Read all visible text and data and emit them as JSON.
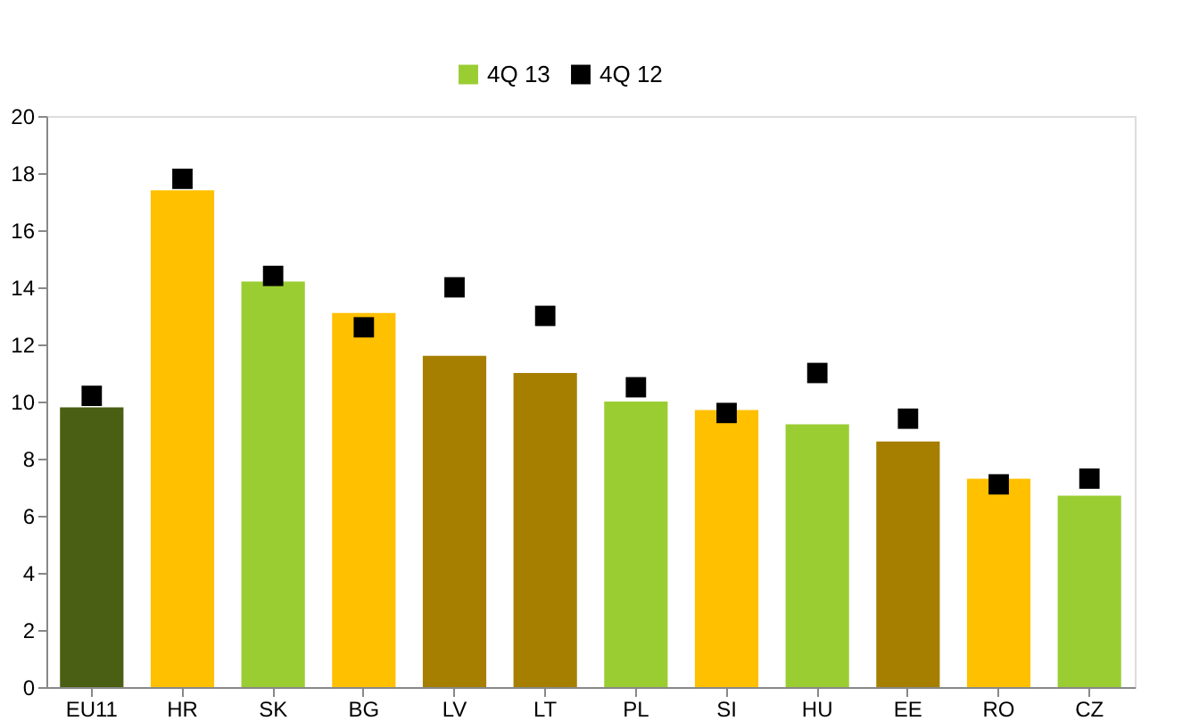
{
  "chart_data": {
    "type": "bar",
    "categories": [
      "EU11",
      "HR",
      "SK",
      "BG",
      "LV",
      "LT",
      "PL",
      "SI",
      "HU",
      "EE",
      "RO",
      "CZ"
    ],
    "series": [
      {
        "name": "4Q 13",
        "color": "#9acd32",
        "colors": [
          "#4a5f13",
          "#ffc000",
          "#9acd32",
          "#ffc000",
          "#a67f00",
          "#a67f00",
          "#9acd32",
          "#ffc000",
          "#9acd32",
          "#a67f00",
          "#ffc000",
          "#9acd32"
        ],
        "values": [
          9.8,
          17.4,
          14.2,
          13.1,
          11.6,
          11.0,
          10.0,
          9.7,
          9.2,
          8.6,
          7.3,
          6.7
        ]
      },
      {
        "name": "4Q 12",
        "type": "scatter",
        "color": "#000000",
        "marker": "square",
        "values": [
          10.2,
          17.8,
          14.4,
          12.6,
          14.0,
          13.0,
          10.5,
          9.6,
          11.0,
          9.4,
          7.1,
          7.3
        ]
      }
    ],
    "ylim": [
      0,
      20
    ],
    "yticks": [
      0,
      2,
      4,
      6,
      8,
      10,
      12,
      14,
      16,
      18,
      20
    ],
    "grid": false,
    "legend": "top"
  }
}
